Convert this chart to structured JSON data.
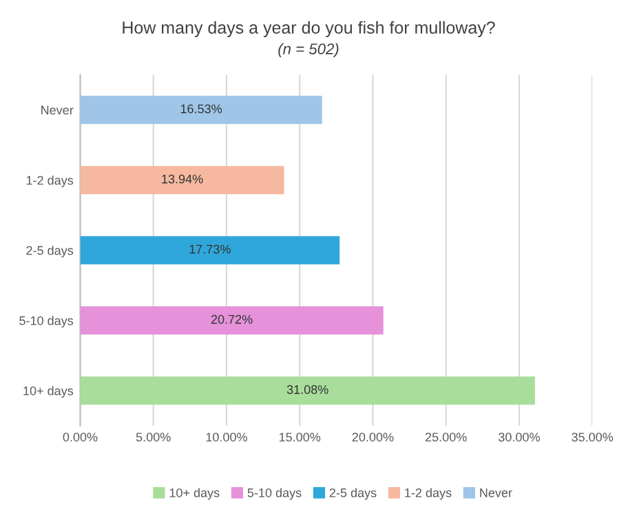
{
  "chart_data": {
    "type": "bar",
    "orientation": "horizontal",
    "title": "How many days a year do you fish for mulloway?",
    "subtitle": "(n = 502)",
    "categories": [
      "Never",
      "1-2 days",
      "2-5 days",
      "5-10 days",
      "10+ days"
    ],
    "series": [
      {
        "name": "10+ days",
        "color": "#a9dd9b",
        "values": [
          null,
          null,
          null,
          null,
          31.08
        ],
        "value_labels": [
          null,
          null,
          null,
          null,
          "31.08%"
        ]
      },
      {
        "name": "5-10 days",
        "color": "#e592da",
        "values": [
          null,
          null,
          null,
          20.72,
          null
        ],
        "value_labels": [
          null,
          null,
          null,
          "20.72%",
          null
        ]
      },
      {
        "name": "2-5 days",
        "color": "#2fa7da",
        "values": [
          null,
          null,
          17.73,
          null,
          null
        ],
        "value_labels": [
          null,
          null,
          "17.73%",
          null,
          null
        ]
      },
      {
        "name": "1-2 days",
        "color": "#f6b9a0",
        "values": [
          null,
          13.94,
          null,
          null,
          null
        ],
        "value_labels": [
          null,
          "13.94%",
          null,
          null,
          null
        ]
      },
      {
        "name": "Never",
        "color": "#9fc5e8",
        "values": [
          16.53,
          null,
          null,
          null,
          null
        ],
        "value_labels": [
          "16.53%",
          null,
          null,
          null,
          null
        ]
      }
    ],
    "xlim": [
      0,
      35
    ],
    "xticks": [
      {
        "value": 0,
        "label": "0.00%"
      },
      {
        "value": 5,
        "label": "5.00%"
      },
      {
        "value": 10,
        "label": "10.00%"
      },
      {
        "value": 15,
        "label": "15.00%"
      },
      {
        "value": 20,
        "label": "20.00%"
      },
      {
        "value": 25,
        "label": "25.00%"
      },
      {
        "value": 30,
        "label": "30.00%"
      },
      {
        "value": 35,
        "label": "35.00%"
      }
    ],
    "grid": "x",
    "legend": "bottom"
  }
}
